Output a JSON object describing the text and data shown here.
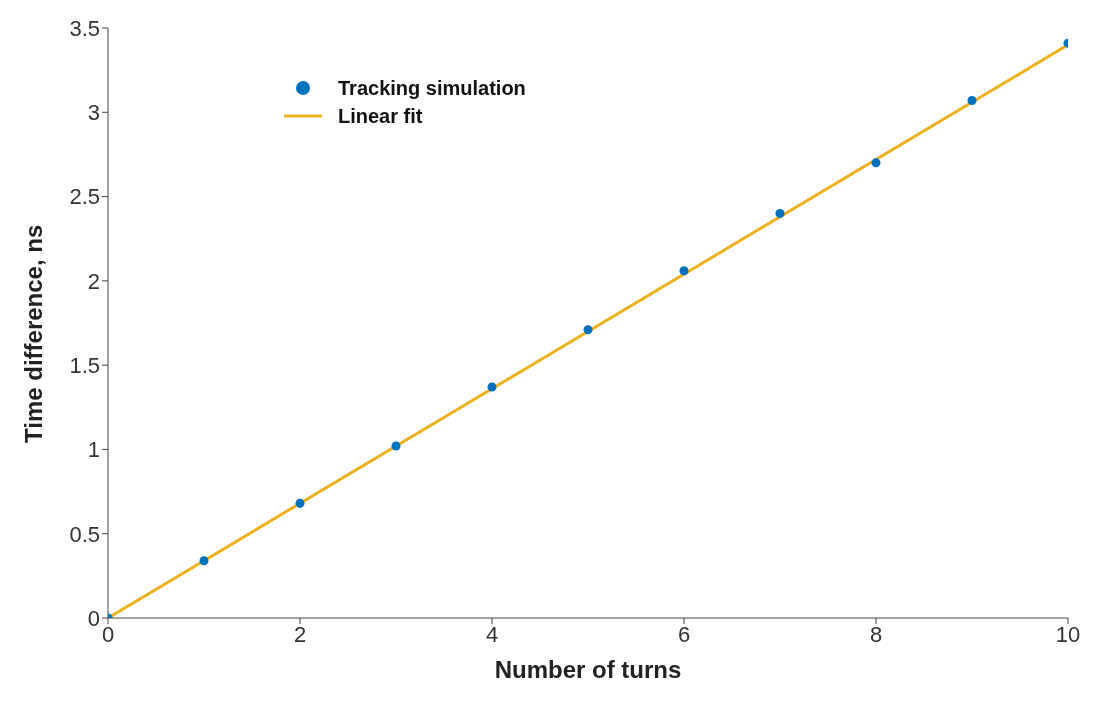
{
  "chart_data": {
    "type": "scatter",
    "xlabel": "Number of turns",
    "ylabel": "Time difference, ns",
    "x": [
      0,
      1,
      2,
      3,
      4,
      5,
      6,
      7,
      8,
      9,
      10
    ],
    "series": [
      {
        "name": "Tracking simulation",
        "type": "scatter",
        "color": "#0072bd",
        "marker": "circle",
        "values": [
          0,
          0.34,
          0.68,
          1.02,
          1.37,
          1.71,
          2.06,
          2.4,
          2.7,
          3.07,
          3.41
        ]
      },
      {
        "name": "Linear fit",
        "type": "line",
        "color": "#edb120",
        "x": [
          0,
          10
        ],
        "values": [
          0,
          3.4
        ]
      }
    ],
    "xlim": [
      0,
      10
    ],
    "xticks": [
      0,
      2,
      4,
      6,
      8,
      10
    ],
    "ylim": [
      0,
      3.5
    ],
    "yticks": [
      0,
      0.5,
      1,
      1.5,
      2,
      2.5,
      3,
      3.5
    ],
    "grid": false,
    "legend": "top left"
  }
}
